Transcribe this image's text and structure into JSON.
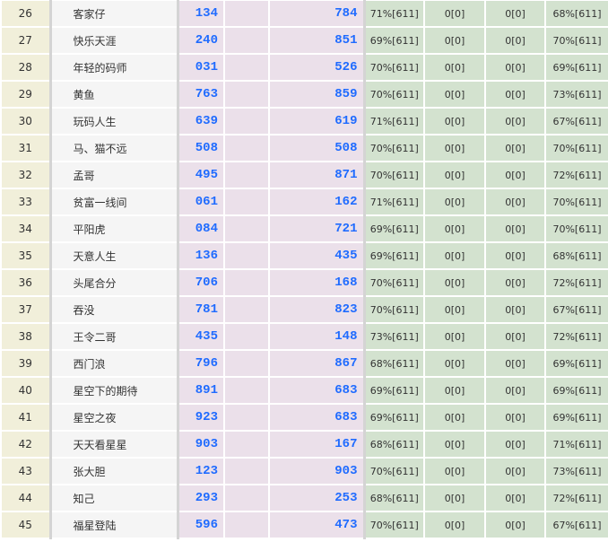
{
  "rows": [
    {
      "rank": "26",
      "name": "客家仔",
      "num1": "134",
      "num2": "784",
      "c1": "71%[611]",
      "c2": "0[0]",
      "c3": "0[0]",
      "c4": "68%[611]"
    },
    {
      "rank": "27",
      "name": "快乐天涯",
      "num1": "240",
      "num2": "851",
      "c1": "69%[611]",
      "c2": "0[0]",
      "c3": "0[0]",
      "c4": "70%[611]"
    },
    {
      "rank": "28",
      "name": "年轻的码师",
      "num1": "031",
      "num2": "526",
      "c1": "70%[611]",
      "c2": "0[0]",
      "c3": "0[0]",
      "c4": "69%[611]"
    },
    {
      "rank": "29",
      "name": "黄鱼",
      "num1": "763",
      "num2": "859",
      "c1": "70%[611]",
      "c2": "0[0]",
      "c3": "0[0]",
      "c4": "73%[611]"
    },
    {
      "rank": "30",
      "name": "玩码人生",
      "num1": "639",
      "num2": "619",
      "c1": "71%[611]",
      "c2": "0[0]",
      "c3": "0[0]",
      "c4": "67%[611]"
    },
    {
      "rank": "31",
      "name": "马、猫不远",
      "num1": "508",
      "num2": "508",
      "c1": "70%[611]",
      "c2": "0[0]",
      "c3": "0[0]",
      "c4": "70%[611]"
    },
    {
      "rank": "32",
      "name": "孟哥",
      "num1": "495",
      "num2": "871",
      "c1": "70%[611]",
      "c2": "0[0]",
      "c3": "0[0]",
      "c4": "72%[611]"
    },
    {
      "rank": "33",
      "name": "贫富一线间",
      "num1": "061",
      "num2": "162",
      "c1": "71%[611]",
      "c2": "0[0]",
      "c3": "0[0]",
      "c4": "70%[611]"
    },
    {
      "rank": "34",
      "name": "平阳虎",
      "num1": "084",
      "num2": "721",
      "c1": "69%[611]",
      "c2": "0[0]",
      "c3": "0[0]",
      "c4": "70%[611]"
    },
    {
      "rank": "35",
      "name": "天意人生",
      "num1": "136",
      "num2": "435",
      "c1": "69%[611]",
      "c2": "0[0]",
      "c3": "0[0]",
      "c4": "68%[611]"
    },
    {
      "rank": "36",
      "name": "头尾合分",
      "num1": "706",
      "num2": "168",
      "c1": "70%[611]",
      "c2": "0[0]",
      "c3": "0[0]",
      "c4": "72%[611]"
    },
    {
      "rank": "37",
      "name": "吞没",
      "num1": "781",
      "num2": "823",
      "c1": "70%[611]",
      "c2": "0[0]",
      "c3": "0[0]",
      "c4": "67%[611]"
    },
    {
      "rank": "38",
      "name": "王令二哥",
      "num1": "435",
      "num2": "148",
      "c1": "73%[611]",
      "c2": "0[0]",
      "c3": "0[0]",
      "c4": "72%[611]"
    },
    {
      "rank": "39",
      "name": "西门浪",
      "num1": "796",
      "num2": "867",
      "c1": "68%[611]",
      "c2": "0[0]",
      "c3": "0[0]",
      "c4": "69%[611]"
    },
    {
      "rank": "40",
      "name": "星空下的期待",
      "num1": "891",
      "num2": "683",
      "c1": "69%[611]",
      "c2": "0[0]",
      "c3": "0[0]",
      "c4": "69%[611]"
    },
    {
      "rank": "41",
      "name": "星空之夜",
      "num1": "923",
      "num2": "683",
      "c1": "69%[611]",
      "c2": "0[0]",
      "c3": "0[0]",
      "c4": "69%[611]"
    },
    {
      "rank": "42",
      "name": "天天看星星",
      "num1": "903",
      "num2": "167",
      "c1": "68%[611]",
      "c2": "0[0]",
      "c3": "0[0]",
      "c4": "71%[611]"
    },
    {
      "rank": "43",
      "name": "张大胆",
      "num1": "123",
      "num2": "903",
      "c1": "70%[611]",
      "c2": "0[0]",
      "c3": "0[0]",
      "c4": "73%[611]"
    },
    {
      "rank": "44",
      "name": "知己",
      "num1": "293",
      "num2": "253",
      "c1": "68%[611]",
      "c2": "0[0]",
      "c3": "0[0]",
      "c4": "72%[611]"
    },
    {
      "rank": "45",
      "name": "福星登陆",
      "num1": "596",
      "num2": "473",
      "c1": "70%[611]",
      "c2": "0[0]",
      "c3": "0[0]",
      "c4": "67%[611]"
    }
  ]
}
